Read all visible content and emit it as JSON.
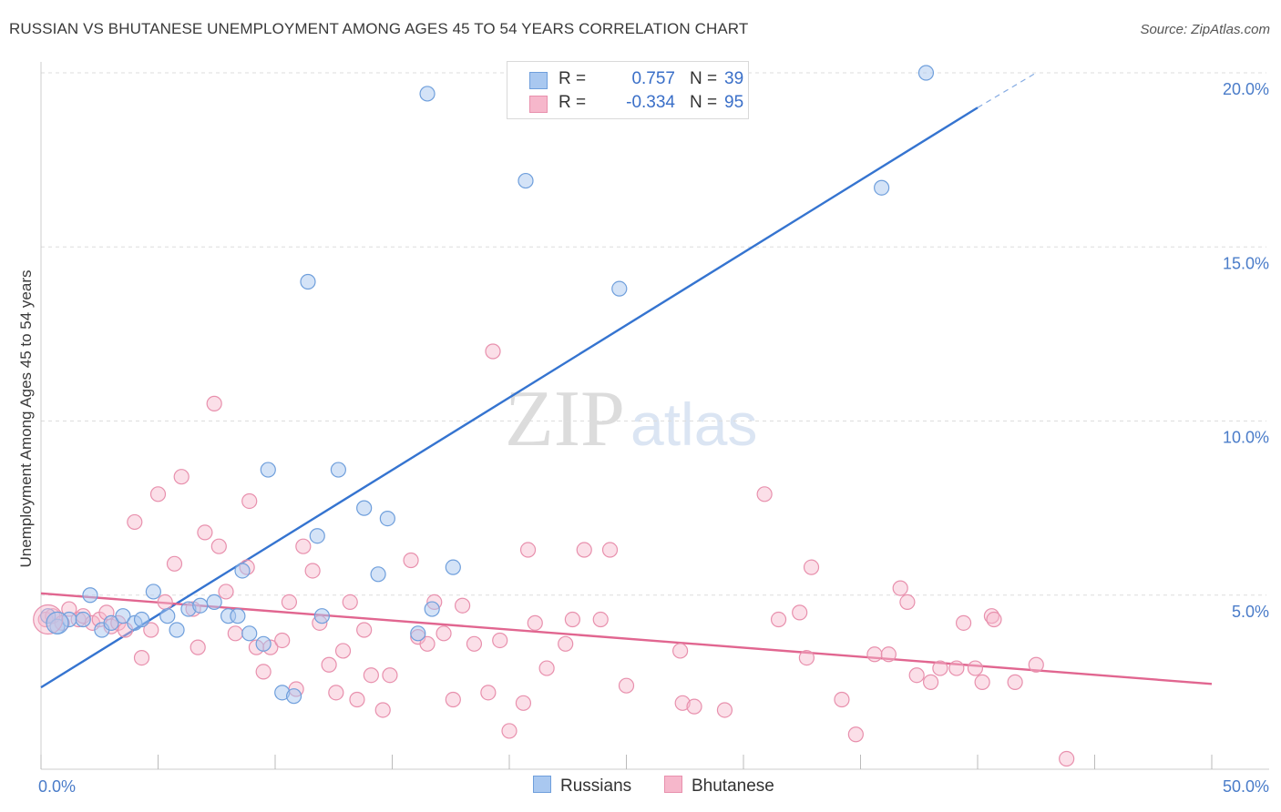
{
  "header": {
    "title": "RUSSIAN VS BHUTANESE UNEMPLOYMENT AMONG AGES 45 TO 54 YEARS CORRELATION CHART",
    "source": "Source: ZipAtlas.com"
  },
  "watermark": {
    "zip": "ZIP",
    "atlas": "atlas"
  },
  "colors": {
    "russians_fill": "#a9c8f0",
    "russians_stroke": "#6f9fdc",
    "russians_line": "#3574d0",
    "bhutanese_fill": "#f6b7cb",
    "bhutanese_stroke": "#e890ad",
    "bhutanese_line": "#e16690",
    "tick_text": "#4a7cc9",
    "grid": "#dddddd"
  },
  "legend": {
    "rows": [
      {
        "r_label": "R =",
        "r_value": "0.757",
        "n_label": "N =",
        "n_value": "39"
      },
      {
        "r_label": "R =",
        "r_value": "-0.334",
        "n_label": "N =",
        "n_value": "95"
      }
    ]
  },
  "bottom_legend": {
    "russians": "Russians",
    "bhutanese": "Bhutanese"
  },
  "chart_data": {
    "type": "scatter",
    "title": "RUSSIAN VS BHUTANESE UNEMPLOYMENT AMONG AGES 45 TO 54 YEARS CORRELATION CHART",
    "xlabel": "",
    "ylabel": "Unemployment Among Ages 45 to 54 years",
    "xlim": [
      0,
      50
    ],
    "ylim": [
      0,
      20
    ],
    "x_tick_labels": [
      "0.0%",
      "50.0%"
    ],
    "y_ticks": [
      5,
      10,
      15,
      20
    ],
    "y_tick_labels": [
      "5.0%",
      "10.0%",
      "15.0%",
      "20.0%"
    ],
    "grid": true,
    "legend_position": "top-center",
    "series": [
      {
        "name": "Russians",
        "r": 0.757,
        "n": 39,
        "trend": {
          "x": [
            0,
            40
          ],
          "y": [
            2.35,
            19.0
          ],
          "dash_to": [
            42.5,
            20.0
          ]
        },
        "points": [
          [
            0.3,
            4.4
          ],
          [
            0.7,
            4.1
          ],
          [
            1.2,
            4.3
          ],
          [
            1.8,
            4.3
          ],
          [
            2.1,
            5.0
          ],
          [
            2.6,
            4.0
          ],
          [
            3.0,
            4.2
          ],
          [
            3.5,
            4.4
          ],
          [
            4.0,
            4.2
          ],
          [
            4.3,
            4.3
          ],
          [
            4.8,
            5.1
          ],
          [
            5.4,
            4.4
          ],
          [
            5.8,
            4.0
          ],
          [
            6.3,
            4.6
          ],
          [
            6.8,
            4.7
          ],
          [
            7.4,
            4.8
          ],
          [
            8.0,
            4.4
          ],
          [
            8.4,
            4.4
          ],
          [
            8.6,
            5.7
          ],
          [
            8.9,
            3.9
          ],
          [
            9.5,
            3.6
          ],
          [
            9.7,
            8.6
          ],
          [
            10.3,
            2.2
          ],
          [
            10.8,
            2.1
          ],
          [
            11.4,
            14.0
          ],
          [
            11.8,
            6.7
          ],
          [
            12.0,
            4.4
          ],
          [
            12.7,
            8.6
          ],
          [
            13.8,
            7.5
          ],
          [
            14.4,
            5.6
          ],
          [
            14.8,
            7.2
          ],
          [
            16.1,
            3.9
          ],
          [
            16.5,
            19.4
          ],
          [
            16.7,
            4.6
          ],
          [
            17.6,
            5.8
          ],
          [
            20.7,
            16.9
          ],
          [
            24.7,
            13.8
          ],
          [
            35.9,
            16.7
          ],
          [
            37.8,
            20.0
          ]
        ]
      },
      {
        "name": "Bhutanese",
        "r": -0.334,
        "n": 95,
        "trend": {
          "x": [
            0,
            50
          ],
          "y": [
            5.05,
            2.45
          ]
        },
        "points": [
          [
            0.2,
            4.3
          ],
          [
            0.5,
            4.4
          ],
          [
            0.9,
            4.2
          ],
          [
            1.2,
            4.6
          ],
          [
            1.6,
            4.3
          ],
          [
            1.8,
            4.4
          ],
          [
            2.2,
            4.2
          ],
          [
            2.5,
            4.3
          ],
          [
            2.8,
            4.5
          ],
          [
            3.0,
            4.1
          ],
          [
            3.3,
            4.2
          ],
          [
            3.6,
            4.0
          ],
          [
            4.0,
            7.1
          ],
          [
            4.3,
            3.2
          ],
          [
            4.7,
            4.0
          ],
          [
            5.0,
            7.9
          ],
          [
            5.3,
            4.8
          ],
          [
            5.7,
            5.9
          ],
          [
            6.0,
            8.4
          ],
          [
            6.5,
            4.6
          ],
          [
            6.7,
            3.5
          ],
          [
            7.0,
            6.8
          ],
          [
            7.4,
            10.5
          ],
          [
            7.6,
            6.4
          ],
          [
            7.9,
            5.1
          ],
          [
            8.3,
            3.9
          ],
          [
            8.8,
            5.8
          ],
          [
            8.9,
            7.7
          ],
          [
            9.2,
            3.5
          ],
          [
            9.5,
            2.8
          ],
          [
            9.8,
            3.5
          ],
          [
            10.3,
            3.7
          ],
          [
            10.6,
            4.8
          ],
          [
            10.9,
            2.3
          ],
          [
            11.2,
            6.4
          ],
          [
            11.6,
            5.7
          ],
          [
            11.9,
            4.2
          ],
          [
            12.3,
            3.0
          ],
          [
            12.6,
            2.2
          ],
          [
            12.9,
            3.4
          ],
          [
            13.2,
            4.8
          ],
          [
            13.5,
            2.0
          ],
          [
            13.8,
            4.0
          ],
          [
            14.1,
            2.7
          ],
          [
            14.6,
            1.7
          ],
          [
            14.9,
            2.7
          ],
          [
            15.8,
            6.0
          ],
          [
            16.1,
            3.8
          ],
          [
            16.5,
            3.6
          ],
          [
            16.8,
            4.8
          ],
          [
            17.2,
            3.9
          ],
          [
            17.6,
            2.0
          ],
          [
            18.0,
            4.7
          ],
          [
            18.5,
            3.6
          ],
          [
            19.1,
            2.2
          ],
          [
            19.3,
            12.0
          ],
          [
            19.6,
            3.7
          ],
          [
            20.0,
            1.1
          ],
          [
            20.6,
            1.9
          ],
          [
            20.8,
            6.3
          ],
          [
            21.1,
            4.2
          ],
          [
            21.6,
            2.9
          ],
          [
            22.4,
            3.6
          ],
          [
            22.7,
            4.3
          ],
          [
            23.2,
            6.3
          ],
          [
            23.9,
            4.3
          ],
          [
            24.3,
            6.3
          ],
          [
            25.0,
            2.4
          ],
          [
            27.3,
            3.4
          ],
          [
            27.4,
            1.9
          ],
          [
            27.9,
            1.8
          ],
          [
            29.2,
            1.7
          ],
          [
            30.9,
            7.9
          ],
          [
            31.5,
            4.3
          ],
          [
            32.4,
            4.5
          ],
          [
            32.7,
            3.2
          ],
          [
            32.9,
            5.8
          ],
          [
            34.2,
            2.0
          ],
          [
            34.8,
            1.0
          ],
          [
            35.6,
            3.3
          ],
          [
            36.2,
            3.3
          ],
          [
            36.7,
            5.2
          ],
          [
            37.0,
            4.8
          ],
          [
            37.4,
            2.7
          ],
          [
            38.0,
            2.5
          ],
          [
            38.4,
            2.9
          ],
          [
            39.1,
            2.9
          ],
          [
            39.4,
            4.2
          ],
          [
            39.9,
            2.9
          ],
          [
            40.2,
            2.5
          ],
          [
            40.6,
            4.4
          ],
          [
            40.7,
            4.3
          ],
          [
            41.6,
            2.5
          ],
          [
            42.5,
            3.0
          ],
          [
            43.8,
            0.3
          ]
        ]
      }
    ]
  }
}
